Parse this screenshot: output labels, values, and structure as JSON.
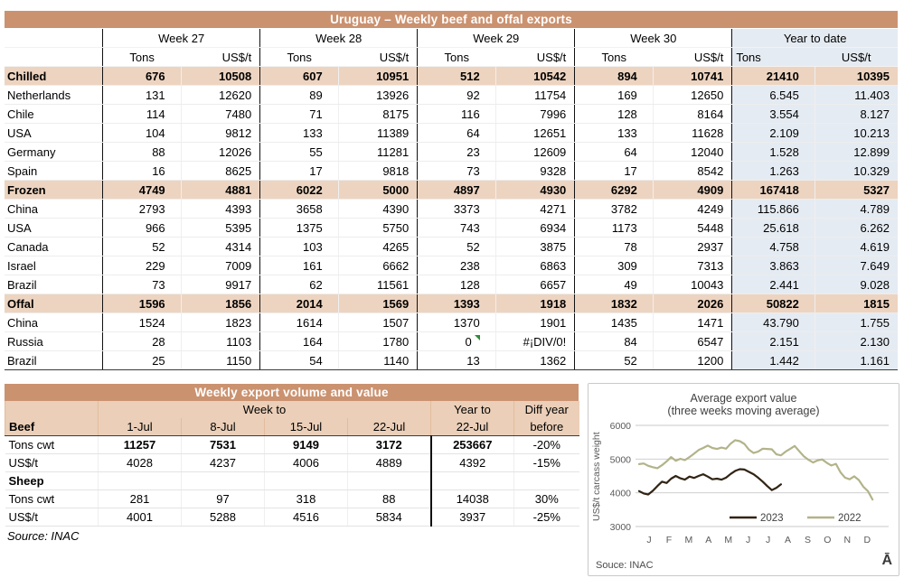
{
  "colors": {
    "header_tan": "#CB9270",
    "section_tan": "#EDD4C0",
    "header2_tan": "#EBCFB8",
    "ytd_blue": "#E5EBF2",
    "error_flag_green": "#2E8B3A",
    "series_2023": "#312414",
    "series_2022": "#B3B38A"
  },
  "table1": {
    "title": "Uruguay – Weekly beef and offal exports",
    "week_headers": [
      "Week 27",
      "Week 28",
      "Week 29",
      "Week 30",
      "Year to date"
    ],
    "unit_tons": "Tons",
    "unit_usd": "US$/t",
    "rows": [
      {
        "label": "Chilled",
        "type": "section",
        "values": [
          "676",
          "10508",
          "607",
          "10951",
          "512",
          "10542",
          "894",
          "10741",
          "21410",
          "10395"
        ]
      },
      {
        "label": "Netherlands",
        "type": "data",
        "values": [
          "131",
          "12620",
          "89",
          "13926",
          "92",
          "11754",
          "169",
          "12650",
          "6.545",
          "11.403"
        ]
      },
      {
        "label": "Chile",
        "type": "data",
        "values": [
          "114",
          "7480",
          "71",
          "8175",
          "116",
          "7996",
          "128",
          "8164",
          "3.554",
          "8.127"
        ]
      },
      {
        "label": "USA",
        "type": "data",
        "values": [
          "104",
          "9812",
          "133",
          "11389",
          "64",
          "12651",
          "133",
          "11628",
          "2.109",
          "10.213"
        ]
      },
      {
        "label": "Germany",
        "type": "data",
        "values": [
          "88",
          "12026",
          "55",
          "11281",
          "23",
          "12609",
          "64",
          "12040",
          "1.528",
          "12.899"
        ]
      },
      {
        "label": "Spain",
        "type": "data",
        "values": [
          "16",
          "8625",
          "17",
          "9818",
          "73",
          "9328",
          "17",
          "8542",
          "1.263",
          "10.329"
        ]
      },
      {
        "label": "Frozen",
        "type": "section",
        "values": [
          "4749",
          "4881",
          "6022",
          "5000",
          "4897",
          "4930",
          "6292",
          "4909",
          "167418",
          "5327"
        ]
      },
      {
        "label": "China",
        "type": "data",
        "values": [
          "2793",
          "4393",
          "3658",
          "4390",
          "3373",
          "4271",
          "3782",
          "4249",
          "115.866",
          "4.789"
        ]
      },
      {
        "label": "USA",
        "type": "data",
        "values": [
          "966",
          "5395",
          "1375",
          "5750",
          "743",
          "6934",
          "1173",
          "5448",
          "25.618",
          "6.262"
        ]
      },
      {
        "label": "Canada",
        "type": "data",
        "values": [
          "52",
          "4314",
          "103",
          "4265",
          "52",
          "3875",
          "78",
          "2937",
          "4.758",
          "4.619"
        ]
      },
      {
        "label": "Israel",
        "type": "data",
        "values": [
          "229",
          "7009",
          "161",
          "6662",
          "238",
          "6863",
          "309",
          "7313",
          "3.863",
          "7.649"
        ]
      },
      {
        "label": "Brazil",
        "type": "data",
        "values": [
          "73",
          "9917",
          "62",
          "11561",
          "128",
          "6657",
          "49",
          "10043",
          "2.441",
          "9.028"
        ]
      },
      {
        "label": "Offal",
        "type": "section",
        "values": [
          "1596",
          "1856",
          "2014",
          "1569",
          "1393",
          "1918",
          "1832",
          "2026",
          "50822",
          "1815"
        ]
      },
      {
        "label": "China",
        "type": "data",
        "values": [
          "1524",
          "1823",
          "1614",
          "1507",
          "1370",
          "1901",
          "1435",
          "1471",
          "43.790",
          "1.755"
        ]
      },
      {
        "label": "Russia",
        "type": "data",
        "flag_cell": 4,
        "values": [
          "28",
          "1103",
          "164",
          "1780",
          "0",
          "#¡DIV/0!",
          "84",
          "6547",
          "2.151",
          "2.130"
        ]
      },
      {
        "label": "Brazil",
        "type": "data",
        "values": [
          "25",
          "1150",
          "54",
          "1140",
          "13",
          "1362",
          "52",
          "1200",
          "1.442",
          "1.161"
        ]
      }
    ]
  },
  "table2": {
    "title": "Weekly export volume and value",
    "group_header": "Week to",
    "year_to_header": "Year to",
    "diff_header_line1": "Diff year",
    "diff_header_line2": "before",
    "first_col_header": "Beef",
    "date_headers": [
      "1-Jul",
      "8-Jul",
      "15-Jul",
      "22-Jul"
    ],
    "ytd_date_header": "22-Jul",
    "rows": [
      {
        "label": "Tons cwt",
        "section": false,
        "bold_values": true,
        "values": [
          "11257",
          "7531",
          "9149",
          "3172",
          "253667",
          "-20%"
        ]
      },
      {
        "label": "US$/t",
        "section": false,
        "bold_values": false,
        "values": [
          "4028",
          "4237",
          "4006",
          "4889",
          "4392",
          "-15%"
        ]
      },
      {
        "label": "Sheep",
        "section": true,
        "bold_values": false,
        "values": [
          "",
          "",
          "",
          "",
          "",
          ""
        ]
      },
      {
        "label": "Tons cwt",
        "section": false,
        "bold_values": false,
        "values": [
          "281",
          "97",
          "318",
          "88",
          "14038",
          "30%"
        ]
      },
      {
        "label": "US$/t",
        "section": false,
        "bold_values": false,
        "values": [
          "4001",
          "5288",
          "4516",
          "5834",
          "3937",
          "-25%"
        ]
      }
    ],
    "source": "Source: INAC"
  },
  "chart_data": {
    "type": "line",
    "title": "Average export value",
    "subtitle": "(three weeks moving average)",
    "ylabel": "US$/t carcass weight",
    "ylim": [
      3000,
      6000
    ],
    "yticks": [
      3000,
      4000,
      5000,
      6000
    ],
    "x_tick_labels": [
      "J",
      "F",
      "M",
      "A",
      "M",
      "J",
      "J",
      "A",
      "S",
      "O",
      "N",
      "D"
    ],
    "grid": true,
    "legend_position": "inside-bottom",
    "source": "Souce: INAC",
    "corner_glyph": "Ā",
    "weeks_per_year": 52,
    "series": [
      {
        "name": "2023",
        "color": "#312414",
        "values": [
          4050,
          3980,
          3950,
          4060,
          4200,
          4330,
          4290,
          4420,
          4500,
          4430,
          4390,
          4480,
          4440,
          4500,
          4550,
          4480,
          4400,
          4420,
          4390,
          4450,
          4560,
          4650,
          4700,
          4690,
          4620,
          4550,
          4450,
          4330,
          4200,
          4080,
          4150,
          4250
        ]
      },
      {
        "name": "2022",
        "color": "#B3B38A",
        "values": [
          4850,
          4870,
          4800,
          4760,
          4730,
          4820,
          4930,
          5060,
          4950,
          5010,
          4970,
          5060,
          5160,
          5270,
          5330,
          5400,
          5330,
          5300,
          5340,
          5310,
          5460,
          5560,
          5530,
          5450,
          5280,
          5180,
          5220,
          5310,
          5300,
          5290,
          5140,
          5110,
          5220,
          5300,
          5390,
          5230,
          5080,
          4980,
          4900,
          4960,
          4990,
          4890,
          4810,
          4860,
          4610,
          4450,
          4400,
          4490,
          4380,
          4180,
          4050,
          3800
        ]
      }
    ]
  }
}
